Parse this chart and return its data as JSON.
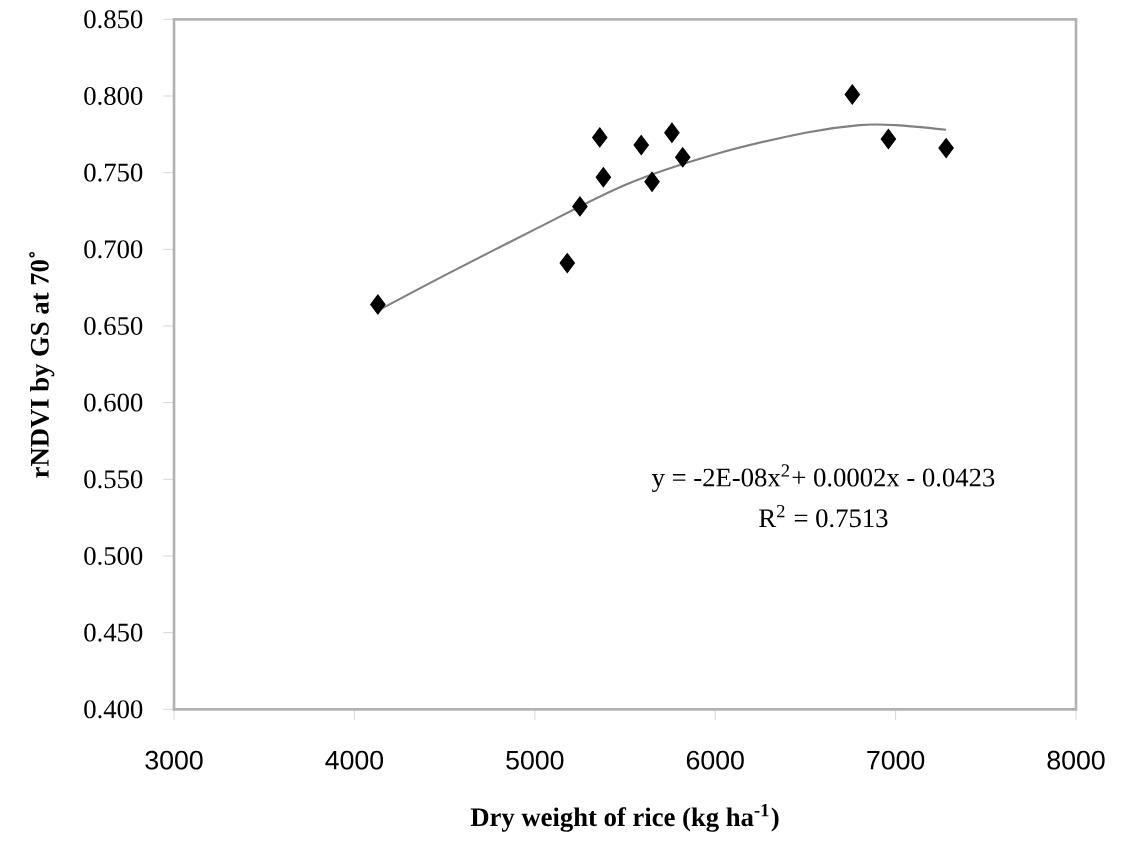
{
  "chart_data": {
    "type": "scatter",
    "xlabel": "Dry weight of rice (kg ha$^{-1}$)",
    "ylabel": "rNDVI by GS at 70˚",
    "series": [
      {
        "marker": "diamond",
        "color": "#000000",
        "x": [
          4130,
          5180,
          5250,
          5360,
          5380,
          5590,
          5650,
          5760,
          5820,
          6760,
          6960,
          7280
        ],
        "values": [
          0.664,
          0.691,
          0.728,
          0.773,
          0.747,
          0.768,
          0.744,
          0.776,
          0.76,
          0.801,
          0.772,
          0.766
        ]
      },
      {
        "type": "line",
        "marker": "none",
        "color": "#808080",
        "x": [
          4130,
          4500,
          5000,
          5500,
          6000,
          6500,
          6800,
          7000,
          7280
        ],
        "values": [
          0.66,
          0.683,
          0.713,
          0.742,
          0.762,
          0.776,
          0.781,
          0.781,
          0.778
        ]
      }
    ],
    "xlim": [
      3000,
      8000
    ],
    "xticks": [
      3000,
      4000,
      5000,
      6000,
      7000,
      8000
    ],
    "ylim": [
      0.4,
      0.85
    ],
    "yticks": [
      {
        "value": 0.4,
        "label": "0.400"
      },
      {
        "value": 0.45,
        "label": "0.450"
      },
      {
        "value": 0.5,
        "label": "0.500"
      },
      {
        "value": 0.55,
        "label": "0.550"
      },
      {
        "value": 0.6,
        "label": "0.600"
      },
      {
        "value": 0.65,
        "label": "0.650"
      },
      {
        "value": 0.7,
        "label": "0.700"
      },
      {
        "value": 0.75,
        "label": "0.750"
      },
      {
        "value": 0.8,
        "label": "0.800"
      },
      {
        "value": 0.85,
        "label": "0.850"
      }
    ],
    "annotations": [
      "y = -2E-08x$^{2}$+ 0.0002x - 0.0423",
      "R$^{2}$ = 0.7513"
    ],
    "grid": false
  }
}
